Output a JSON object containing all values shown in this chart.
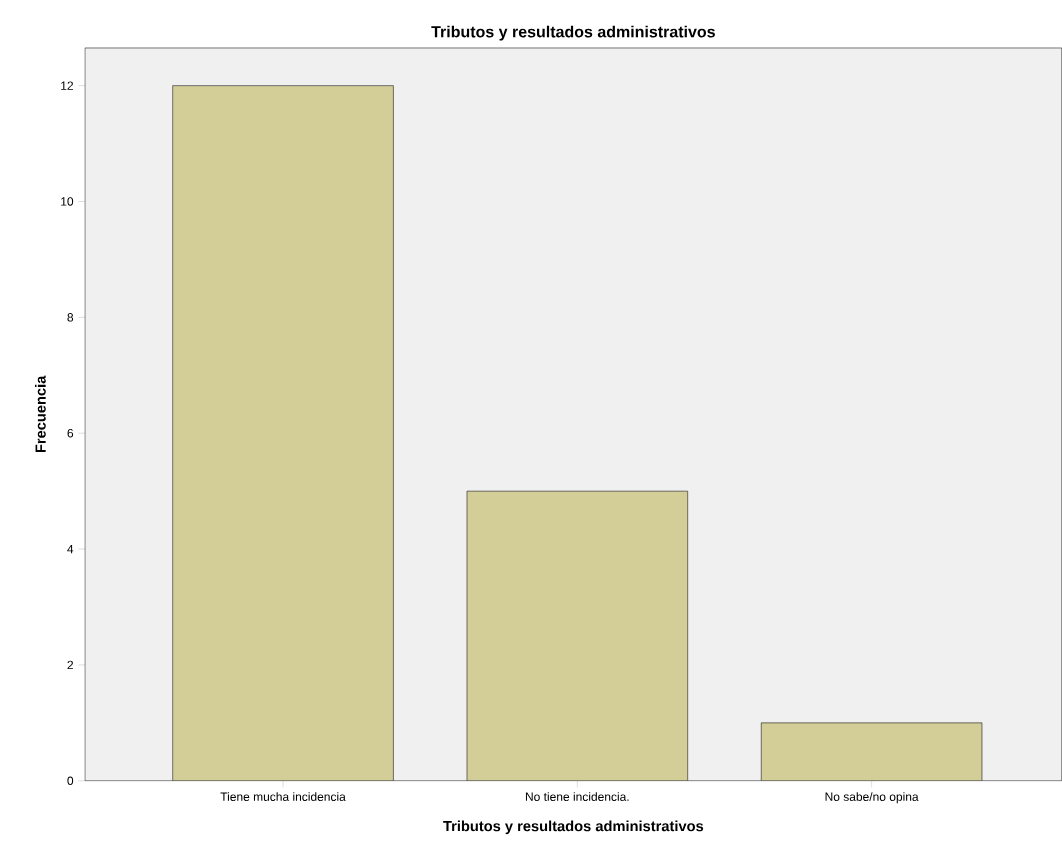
{
  "chart_data": {
    "type": "bar",
    "title": "Tributos y resultados administrativos",
    "xlabel": "Tributos y resultados administrativos",
    "ylabel": "Frecuencia",
    "categories": [
      "Tiene mucha incidencia",
      "No tiene incidencia.",
      "No sabe/no opina"
    ],
    "values": [
      12,
      5,
      1
    ],
    "color": "#d3cd98",
    "ylim": [
      0,
      12.65
    ],
    "yticks": [
      0,
      2,
      4,
      6,
      8,
      10,
      12
    ],
    "grid": false
  }
}
